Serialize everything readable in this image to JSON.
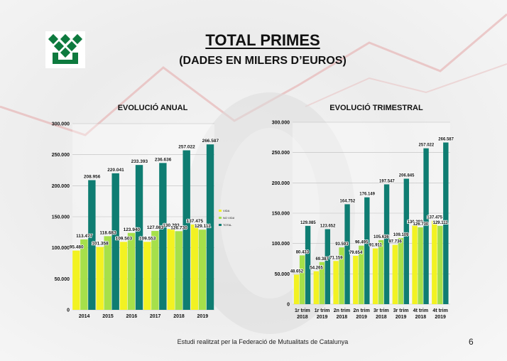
{
  "header": {
    "title": "TOTAL PRIMES",
    "subtitle": "(DADES EN MILERS D’EUROS)"
  },
  "footer": {
    "text": "Estudi realitzat per la Federació de Mutualitats de Catalunya",
    "page": "6"
  },
  "colors": {
    "vida": "#f2f222",
    "no_vida": "#a6e04a",
    "total": "#0f7d72"
  },
  "chart_data": [
    {
      "type": "bar",
      "title": "EVOLUCIÓ ANUAL",
      "categories": [
        "2014",
        "2015",
        "2016",
        "2017",
        "2018",
        "2019"
      ],
      "ylim": [
        0,
        300000
      ],
      "yticks": [
        "0",
        "50.000",
        "100.000",
        "150.000",
        "200.000",
        "250.000",
        "300.000"
      ],
      "grid": true,
      "legend_position": "right",
      "series": [
        {
          "name": "VIDA",
          "values": [
            95480,
            101358,
            109503,
            109553,
            130293,
            137475
          ],
          "labels": [
            "95.480",
            "101.358",
            "109.503",
            "109.553",
            "130.293",
            "137.475"
          ]
        },
        {
          "name": "NO VIDA",
          "values": [
            113477,
            118683,
            123940,
            127083,
            126730,
            129111
          ],
          "labels": [
            "113.477",
            "118.683",
            "123.940",
            "127.083",
            "126.730",
            "129.111"
          ]
        },
        {
          "name": "TOTAL",
          "values": [
            208956,
            220041,
            233393,
            236636,
            257022,
            266587
          ],
          "labels": [
            "208.956",
            "220.041",
            "233.393",
            "236.636",
            "257.022",
            "266.587"
          ]
        }
      ]
    },
    {
      "type": "bar",
      "title": "EVOLUCIÓ TRIMESTRAL",
      "categories": [
        [
          "1r trim",
          "2018"
        ],
        [
          "1r trim",
          "2019"
        ],
        [
          "2n trim",
          "2018"
        ],
        [
          "2n trim",
          "2019"
        ],
        [
          "3r trim",
          "2018"
        ],
        [
          "3r trim",
          "2019"
        ],
        [
          "4t trim",
          "2018"
        ],
        [
          "4t trim",
          "2019"
        ]
      ],
      "ylim": [
        0,
        300000
      ],
      "yticks": [
        "0",
        "50.000",
        "100.000",
        "150.000",
        "200.000",
        "250.000",
        "300.000"
      ],
      "grid": true,
      "legend_position": "right",
      "series": [
        {
          "name": "VIDA",
          "values": [
            48652,
            54265,
            71159,
            79654,
            91911,
            97736,
            130293,
            137475
          ],
          "labels": [
            "48.652",
            "54.265",
            "71.159",
            "79.654",
            "91.911",
            "97.736",
            "130.293",
            "137.475"
          ]
        },
        {
          "name": "NO VIDA",
          "values": [
            80433,
            69387,
            93593,
            96495,
            105636,
            109109,
            126730,
            129111
          ],
          "labels": [
            "80.433",
            "69.387",
            "93.593",
            "96.495",
            "105.636",
            "109.109",
            "126.730",
            "129.111"
          ]
        },
        {
          "name": "TOTAL",
          "values": [
            129085,
            123652,
            164752,
            176149,
            197547,
            206845,
            257022,
            266587
          ],
          "labels": [
            "129.085",
            "123.652",
            "164.752",
            "176.149",
            "197.547",
            "206.845",
            "257.022",
            "266.587"
          ]
        }
      ]
    }
  ]
}
